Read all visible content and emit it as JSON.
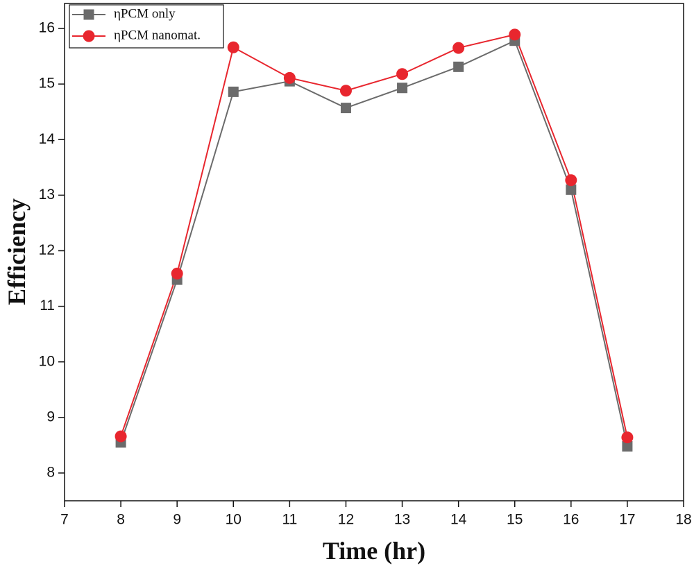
{
  "chart_data": {
    "type": "line",
    "x_label": "Time (hr)",
    "y_label": "Efficiency",
    "x": [
      8,
      9,
      10,
      11,
      12,
      13,
      14,
      15,
      16,
      17
    ],
    "series": [
      {
        "name": "ηPCM only",
        "color": "#6b6b6b",
        "marker": "square",
        "values": [
          8.55,
          11.48,
          14.86,
          15.05,
          14.57,
          14.93,
          15.31,
          15.78,
          13.1,
          8.48
        ]
      },
      {
        "name": "ηPCM nanomat.",
        "color": "#e8262e",
        "marker": "circle",
        "values": [
          8.66,
          11.59,
          15.66,
          15.11,
          14.88,
          15.18,
          15.65,
          15.89,
          13.27,
          8.64
        ]
      }
    ],
    "xlim": [
      7,
      18
    ],
    "xticks": [
      7,
      8,
      9,
      10,
      11,
      12,
      13,
      14,
      15,
      16,
      17,
      18
    ],
    "ylim": [
      7.5,
      16.45
    ],
    "yticks": [
      8,
      9,
      10,
      11,
      12,
      13,
      14,
      15,
      16
    ],
    "legend": "upper-left"
  }
}
